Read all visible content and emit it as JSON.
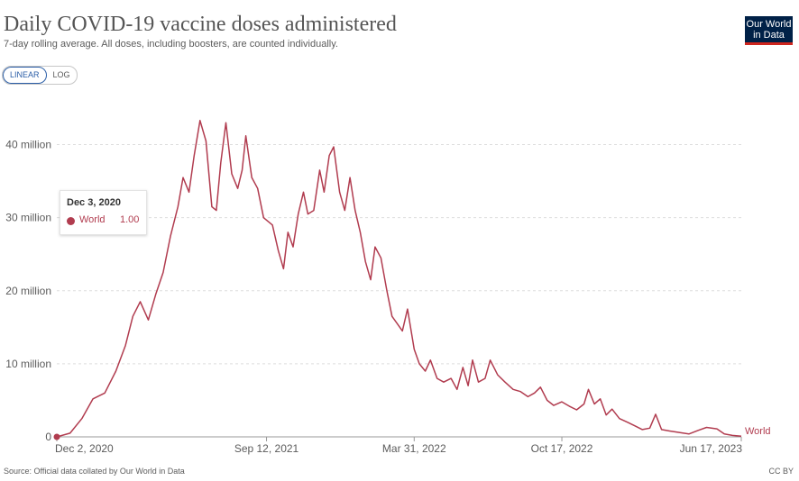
{
  "header": {
    "title": "Daily COVID-19 vaccine doses administered",
    "subtitle": "7-day rolling average. All doses, including boosters, are counted individually."
  },
  "logo": {
    "line1": "Our World",
    "line2": "in Data"
  },
  "scale_toggle": {
    "linear_label": "LINEAR",
    "log_label": "LOG",
    "selected": "LINEAR"
  },
  "tooltip": {
    "date": "Dec 3, 2020",
    "series": "World",
    "value": "1.00"
  },
  "footer": {
    "source": "Source: Official data collated by Our World in Data",
    "license": "CC BY"
  },
  "colors": {
    "series": "#b13c4f",
    "grid": "#dddddd",
    "axis_text": "#5b5b5b"
  },
  "chart_data": {
    "type": "line",
    "title": "Daily COVID-19 vaccine doses administered",
    "subtitle": "7-day rolling average. All doses, including boosters, are counted individually.",
    "ylim": [
      0,
      45000000
    ],
    "xlim": [
      "2020-12-02",
      "2023-06-17"
    ],
    "y_ticks": [
      {
        "value": 0,
        "label": "0"
      },
      {
        "value": 10000000,
        "label": "10 million"
      },
      {
        "value": 20000000,
        "label": "20 million"
      },
      {
        "value": 30000000,
        "label": "30 million"
      },
      {
        "value": 40000000,
        "label": "40 million"
      }
    ],
    "x_ticks": [
      {
        "date": "2020-12-02",
        "label": "Dec 2, 2020"
      },
      {
        "date": "2021-09-12",
        "label": "Sep 12, 2021"
      },
      {
        "date": "2022-03-31",
        "label": "Mar 31, 2022"
      },
      {
        "date": "2022-10-17",
        "label": "Oct 17, 2022"
      },
      {
        "date": "2023-06-17",
        "label": "Jun 17, 2023"
      }
    ],
    "grid": true,
    "series": [
      {
        "name": "World",
        "points": [
          [
            "2020-12-02",
            0
          ],
          [
            "2020-12-20",
            500000
          ],
          [
            "2021-01-05",
            2500000
          ],
          [
            "2021-01-20",
            5200000
          ],
          [
            "2021-02-05",
            6000000
          ],
          [
            "2021-02-20",
            9000000
          ],
          [
            "2021-03-05",
            12500000
          ],
          [
            "2021-03-15",
            16500000
          ],
          [
            "2021-03-25",
            18500000
          ],
          [
            "2021-04-05",
            16000000
          ],
          [
            "2021-04-15",
            19500000
          ],
          [
            "2021-04-25",
            22500000
          ],
          [
            "2021-05-05",
            27500000
          ],
          [
            "2021-05-15",
            31500000
          ],
          [
            "2021-05-22",
            35500000
          ],
          [
            "2021-05-30",
            33500000
          ],
          [
            "2021-06-06",
            38500000
          ],
          [
            "2021-06-14",
            43300000
          ],
          [
            "2021-06-22",
            40500000
          ],
          [
            "2021-06-30",
            31500000
          ],
          [
            "2021-07-06",
            31000000
          ],
          [
            "2021-07-12",
            37500000
          ],
          [
            "2021-07-19",
            43000000
          ],
          [
            "2021-07-27",
            36000000
          ],
          [
            "2021-08-04",
            34000000
          ],
          [
            "2021-08-10",
            36500000
          ],
          [
            "2021-08-15",
            41200000
          ],
          [
            "2021-08-23",
            35500000
          ],
          [
            "2021-08-31",
            34000000
          ],
          [
            "2021-09-08",
            30000000
          ],
          [
            "2021-09-20",
            29000000
          ],
          [
            "2021-09-28",
            25500000
          ],
          [
            "2021-10-05",
            23000000
          ],
          [
            "2021-10-11",
            28000000
          ],
          [
            "2021-10-18",
            26000000
          ],
          [
            "2021-10-25",
            30500000
          ],
          [
            "2021-11-01",
            33500000
          ],
          [
            "2021-11-07",
            30500000
          ],
          [
            "2021-11-15",
            31000000
          ],
          [
            "2021-11-23",
            36500000
          ],
          [
            "2021-11-29",
            33500000
          ],
          [
            "2021-12-06",
            38500000
          ],
          [
            "2021-12-12",
            39700000
          ],
          [
            "2021-12-20",
            33500000
          ],
          [
            "2021-12-27",
            31000000
          ],
          [
            "2022-01-03",
            35500000
          ],
          [
            "2022-01-10",
            31000000
          ],
          [
            "2022-01-17",
            28000000
          ],
          [
            "2022-01-24",
            24000000
          ],
          [
            "2022-01-31",
            21500000
          ],
          [
            "2022-02-06",
            26000000
          ],
          [
            "2022-02-14",
            24500000
          ],
          [
            "2022-02-22",
            20000000
          ],
          [
            "2022-03-01",
            16500000
          ],
          [
            "2022-03-08",
            15500000
          ],
          [
            "2022-03-15",
            14500000
          ],
          [
            "2022-03-22",
            17500000
          ],
          [
            "2022-03-31",
            12000000
          ],
          [
            "2022-04-07",
            10000000
          ],
          [
            "2022-04-15",
            9000000
          ],
          [
            "2022-04-22",
            10500000
          ],
          [
            "2022-05-01",
            8000000
          ],
          [
            "2022-05-10",
            7500000
          ],
          [
            "2022-05-20",
            8000000
          ],
          [
            "2022-05-28",
            6500000
          ],
          [
            "2022-06-05",
            9500000
          ],
          [
            "2022-06-12",
            7000000
          ],
          [
            "2022-06-18",
            10500000
          ],
          [
            "2022-06-26",
            7500000
          ],
          [
            "2022-07-05",
            8000000
          ],
          [
            "2022-07-12",
            10500000
          ],
          [
            "2022-07-22",
            8500000
          ],
          [
            "2022-08-01",
            7500000
          ],
          [
            "2022-08-12",
            6500000
          ],
          [
            "2022-08-22",
            6200000
          ],
          [
            "2022-09-01",
            5500000
          ],
          [
            "2022-09-10",
            6000000
          ],
          [
            "2022-09-18",
            6800000
          ],
          [
            "2022-09-27",
            5000000
          ],
          [
            "2022-10-06",
            4300000
          ],
          [
            "2022-10-17",
            4800000
          ],
          [
            "2022-10-27",
            4200000
          ],
          [
            "2022-11-06",
            3700000
          ],
          [
            "2022-11-16",
            4500000
          ],
          [
            "2022-11-22",
            6500000
          ],
          [
            "2022-11-30",
            4500000
          ],
          [
            "2022-12-08",
            5200000
          ],
          [
            "2022-12-16",
            3000000
          ],
          [
            "2022-12-24",
            3800000
          ],
          [
            "2023-01-03",
            2500000
          ],
          [
            "2023-01-14",
            2000000
          ],
          [
            "2023-01-24",
            1500000
          ],
          [
            "2023-02-03",
            1000000
          ],
          [
            "2023-02-13",
            1200000
          ],
          [
            "2023-02-21",
            3100000
          ],
          [
            "2023-03-01",
            1000000
          ],
          [
            "2023-03-12",
            800000
          ],
          [
            "2023-03-25",
            600000
          ],
          [
            "2023-04-07",
            400000
          ],
          [
            "2023-04-20",
            900000
          ],
          [
            "2023-05-01",
            1300000
          ],
          [
            "2023-05-15",
            1100000
          ],
          [
            "2023-05-25",
            400000
          ],
          [
            "2023-06-05",
            200000
          ],
          [
            "2023-06-17",
            100000
          ]
        ]
      }
    ]
  }
}
